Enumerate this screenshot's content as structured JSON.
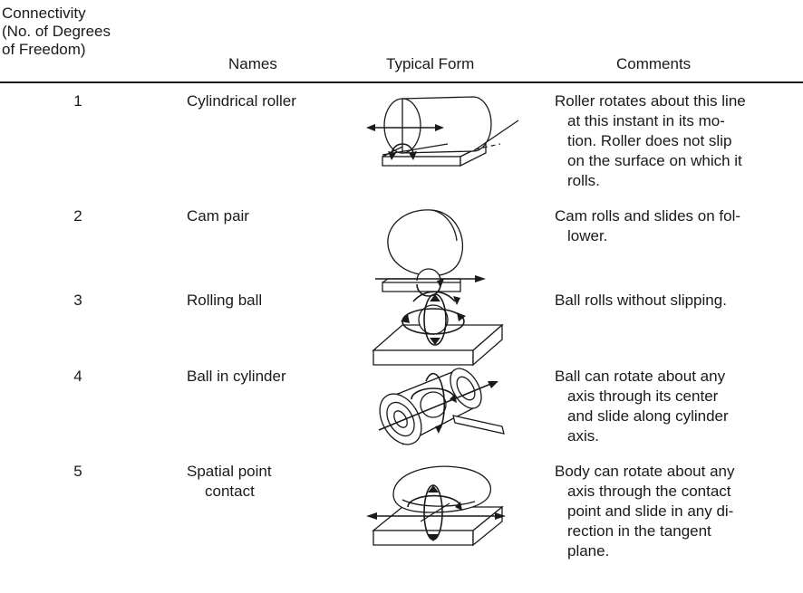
{
  "headers": {
    "connectivity_lines": [
      "Connectivity",
      "(No. of Degrees",
      "of Freedom)"
    ],
    "names": "Names",
    "typical_form": "Typical Form",
    "comments": "Comments"
  },
  "rows": [
    {
      "connectivity": "1",
      "name_lines": [
        "Cylindrical roller"
      ],
      "form_icon": "cylindrical-roller-figure",
      "comment_lines": [
        "Roller rotates about this line",
        "at this instant in its mo-",
        "tion. Roller does not slip",
        "on the surface on which it",
        "rolls."
      ]
    },
    {
      "connectivity": "2",
      "name_lines": [
        "Cam pair"
      ],
      "form_icon": "cam-pair-figure",
      "comment_lines": [
        "Cam rolls and slides on fol-",
        "lower."
      ]
    },
    {
      "connectivity": "3",
      "name_lines": [
        "Rolling ball"
      ],
      "form_icon": "rolling-ball-figure",
      "comment_lines": [
        "Ball rolls without slipping."
      ]
    },
    {
      "connectivity": "4",
      "name_lines": [
        "Ball in cylinder"
      ],
      "form_icon": "ball-in-cylinder-figure",
      "comment_lines": [
        "Ball can rotate about any",
        "axis through its center",
        "and slide along cylinder",
        "axis."
      ]
    },
    {
      "connectivity": "5",
      "name_lines": [
        "Spatial point",
        "contact"
      ],
      "form_icon": "spatial-point-contact-figure",
      "comment_lines": [
        "Body can rotate about any",
        "axis through the contact",
        "point and slide in any di-",
        "rection in the tangent",
        "plane."
      ]
    }
  ]
}
